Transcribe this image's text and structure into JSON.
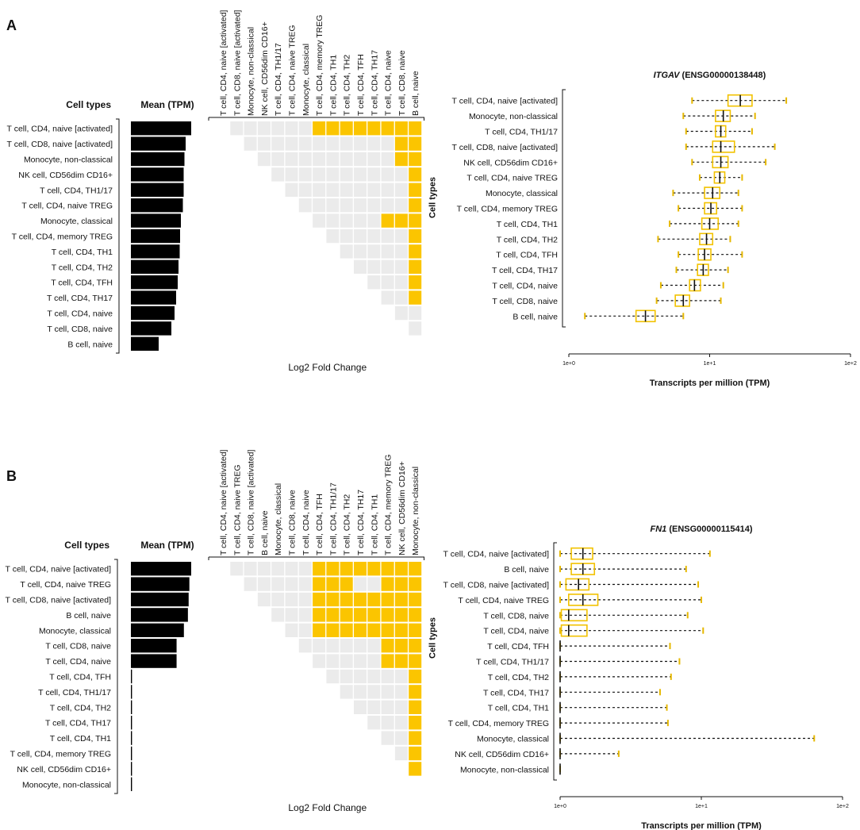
{
  "chart_data": [
    {
      "panel": "A",
      "left_header": "Cell types",
      "mean_header": "Mean (TPM)",
      "fc_xlabel": "Log2 Fold Change",
      "fc_side_label": "Cell types",
      "rows": [
        "T cell, CD4, naive [activated]",
        "T cell, CD8, naive [activated]",
        "Monocyte, non-classical",
        "NK cell, CD56dim CD16+",
        "T cell, CD4, TH1/17",
        "T cell, CD4, naive TREG",
        "Monocyte, classical",
        "T cell, CD4, memory TREG",
        "T cell, CD4, TH1",
        "T cell, CD4, TH2",
        "T cell, CD4, TFH",
        "T cell, CD4, TH17",
        "T cell, CD4, naive",
        "T cell, CD8, naive",
        "B cell, naive"
      ],
      "mean_tpm": [
        15.2,
        13.8,
        13.5,
        13.3,
        13.3,
        13.1,
        12.6,
        12.4,
        12.3,
        12.0,
        11.8,
        11.4,
        11.0,
        10.2,
        7.0
      ],
      "columns": [
        "T cell, CD4, naive [activated]",
        "T cell, CD8, naive [activated]",
        "Monocyte, non-classical",
        "NK cell, CD56dim CD16+",
        "T cell, CD4, TH1/17",
        "T cell, CD4, naive TREG",
        "Monocyte, classical",
        "T cell, CD4, memory TREG",
        "T cell, CD4, TH1",
        "T cell, CD4, TH2",
        "T cell, CD4, TFH",
        "T cell, CD4, TH17",
        "T cell, CD4, naive",
        "T cell, CD8, naive",
        "B cell, naive"
      ],
      "significant_pairs": [
        [
          0,
          7
        ],
        [
          0,
          8
        ],
        [
          0,
          9
        ],
        [
          0,
          10
        ],
        [
          0,
          11
        ],
        [
          0,
          12
        ],
        [
          0,
          13
        ],
        [
          0,
          14
        ],
        [
          1,
          13
        ],
        [
          1,
          14
        ],
        [
          2,
          13
        ],
        [
          2,
          14
        ],
        [
          3,
          14
        ],
        [
          4,
          14
        ],
        [
          5,
          14
        ],
        [
          6,
          12
        ],
        [
          6,
          13
        ],
        [
          6,
          14
        ],
        [
          7,
          14
        ],
        [
          8,
          14
        ],
        [
          9,
          14
        ],
        [
          10,
          14
        ],
        [
          11,
          14
        ]
      ],
      "box_title_gene": "ITGAV",
      "box_title_id": "(ENSG00000138448)",
      "box_type": "boxplot",
      "box_xlabel": "Transcripts per million (TPM)",
      "box_xticks": [
        "1e+0",
        "1e+1",
        "1e+2"
      ],
      "box_xlim": [
        1,
        100
      ],
      "box_rows": [
        "T cell, CD4, naive [activated]",
        "Monocyte, non-classical",
        "T cell, CD4, TH1/17",
        "T cell, CD8, naive [activated]",
        "NK cell, CD56dim CD16+",
        "T cell, CD4, naive TREG",
        "Monocyte, classical",
        "T cell, CD4, memory TREG",
        "T cell, CD4, TH1",
        "T cell, CD4, TH2",
        "T cell, CD4, TFH",
        "T cell, CD4, TH17",
        "T cell, CD4, naive",
        "T cell, CD8, naive",
        "B cell, naive"
      ],
      "box_stats": [
        {
          "min": 7.5,
          "q1": 13.5,
          "median": 16.5,
          "q3": 20,
          "max": 35
        },
        {
          "min": 6.5,
          "q1": 11,
          "median": 12.5,
          "q3": 14,
          "max": 21
        },
        {
          "min": 6.8,
          "q1": 11,
          "median": 12,
          "q3": 13,
          "max": 20
        },
        {
          "min": 6.8,
          "q1": 10.5,
          "median": 12,
          "q3": 15,
          "max": 29
        },
        {
          "min": 7.5,
          "q1": 10.5,
          "median": 12,
          "q3": 13.5,
          "max": 25
        },
        {
          "min": 8.5,
          "q1": 10.8,
          "median": 11.8,
          "q3": 12.8,
          "max": 17
        },
        {
          "min": 5.5,
          "q1": 9.2,
          "median": 10.5,
          "q3": 11.8,
          "max": 16
        },
        {
          "min": 6,
          "q1": 9.2,
          "median": 10.2,
          "q3": 11.2,
          "max": 17
        },
        {
          "min": 5.2,
          "q1": 8.8,
          "median": 10,
          "q3": 11.5,
          "max": 16
        },
        {
          "min": 4.3,
          "q1": 8.5,
          "median": 9.5,
          "q3": 10.5,
          "max": 14
        },
        {
          "min": 6,
          "q1": 8.3,
          "median": 9.2,
          "q3": 10.2,
          "max": 17
        },
        {
          "min": 5.8,
          "q1": 8.2,
          "median": 9,
          "q3": 9.8,
          "max": 13.5
        },
        {
          "min": 4.5,
          "q1": 7.2,
          "median": 7.8,
          "q3": 8.6,
          "max": 12.5
        },
        {
          "min": 4.2,
          "q1": 5.7,
          "median": 6.5,
          "q3": 7.2,
          "max": 12
        },
        {
          "min": 1.3,
          "q1": 3,
          "median": 3.5,
          "q3": 4.1,
          "max": 6.5
        }
      ]
    },
    {
      "panel": "B",
      "left_header": "Cell types",
      "mean_header": "Mean (TPM)",
      "fc_xlabel": "Log2 Fold Change",
      "fc_side_label": "Cell types",
      "rows": [
        "T cell, CD4, naive [activated]",
        "T cell, CD4, naive TREG",
        "T cell, CD8, naive [activated]",
        "B cell, naive",
        "Monocyte, classical",
        "T cell, CD8, naive",
        "T cell, CD4, naive",
        "T cell, CD4, TFH",
        "T cell, CD4, TH1/17",
        "T cell, CD4, TH2",
        "T cell, CD4, TH17",
        "T cell, CD4, TH1",
        "T cell, CD4, memory TREG",
        "NK cell, CD56dim CD16+",
        "Monocyte, non-classical"
      ],
      "mean_tpm": [
        1.65,
        1.6,
        1.58,
        1.56,
        1.45,
        1.25,
        1.25,
        0.03,
        0.03,
        0.03,
        0.03,
        0.03,
        0.03,
        0.03,
        0.03
      ],
      "columns": [
        "T cell, CD4, naive [activated]",
        "T cell, CD4, naive TREG",
        "T cell, CD8, naive [activated]",
        "B cell, naive",
        "Monocyte, classical",
        "T cell, CD8, naive",
        "T cell, CD4, naive",
        "T cell, CD4, TFH",
        "T cell, CD4, TH1/17",
        "T cell, CD4, TH2",
        "T cell, CD4, TH17",
        "T cell, CD4, TH1",
        "T cell, CD4, memory TREG",
        "NK cell, CD56dim CD16+",
        "Monocyte, non-classical"
      ],
      "significant_pairs": [
        [
          0,
          7
        ],
        [
          0,
          8
        ],
        [
          0,
          9
        ],
        [
          0,
          10
        ],
        [
          0,
          11
        ],
        [
          0,
          12
        ],
        [
          0,
          13
        ],
        [
          0,
          14
        ],
        [
          1,
          7
        ],
        [
          1,
          8
        ],
        [
          1,
          9
        ],
        [
          1,
          12
        ],
        [
          1,
          13
        ],
        [
          1,
          14
        ],
        [
          2,
          7
        ],
        [
          2,
          8
        ],
        [
          2,
          9
        ],
        [
          2,
          10
        ],
        [
          2,
          11
        ],
        [
          2,
          12
        ],
        [
          2,
          13
        ],
        [
          2,
          14
        ],
        [
          3,
          7
        ],
        [
          3,
          8
        ],
        [
          3,
          9
        ],
        [
          3,
          10
        ],
        [
          3,
          11
        ],
        [
          3,
          12
        ],
        [
          3,
          13
        ],
        [
          3,
          14
        ],
        [
          4,
          7
        ],
        [
          4,
          8
        ],
        [
          4,
          9
        ],
        [
          4,
          10
        ],
        [
          4,
          11
        ],
        [
          4,
          12
        ],
        [
          4,
          13
        ],
        [
          4,
          14
        ],
        [
          5,
          12
        ],
        [
          5,
          13
        ],
        [
          5,
          14
        ],
        [
          6,
          12
        ],
        [
          6,
          13
        ],
        [
          6,
          14
        ],
        [
          7,
          14
        ],
        [
          8,
          14
        ],
        [
          9,
          14
        ],
        [
          10,
          14
        ],
        [
          11,
          14
        ],
        [
          12,
          14
        ],
        [
          13,
          14
        ]
      ],
      "box_title_gene": "FN1",
      "box_title_id": "(ENSG00000115414)",
      "box_type": "boxplot",
      "box_xlabel": "Transcripts per million (TPM)",
      "box_xticks": [
        "1e+0",
        "1e+1",
        "1e+2"
      ],
      "box_xlim": [
        1,
        100
      ],
      "box_rows": [
        "T cell, CD4, naive [activated]",
        "B cell, naive",
        "T cell, CD8, naive [activated]",
        "T cell, CD4, naive TREG",
        "T cell, CD8, naive",
        "T cell, CD4, naive",
        "T cell, CD4, TFH",
        "T cell, CD4, TH1/17",
        "T cell, CD4, TH2",
        "T cell, CD4, TH17",
        "T cell, CD4, TH1",
        "T cell, CD4, memory TREG",
        "Monocyte, classical",
        "NK cell, CD56dim CD16+",
        "Monocyte, non-classical"
      ],
      "box_stats": [
        {
          "min": 1,
          "q1": 1.2,
          "median": 1.45,
          "q3": 1.7,
          "max": 11.5
        },
        {
          "min": 1,
          "q1": 1.2,
          "median": 1.45,
          "q3": 1.75,
          "max": 7.8
        },
        {
          "min": 1,
          "q1": 1.1,
          "median": 1.35,
          "q3": 1.6,
          "max": 9.5
        },
        {
          "min": 1,
          "q1": 1.15,
          "median": 1.45,
          "q3": 1.85,
          "max": 10
        },
        {
          "min": 1,
          "q1": 1.02,
          "median": 1.15,
          "q3": 1.55,
          "max": 8
        },
        {
          "min": 1,
          "q1": 1.02,
          "median": 1.15,
          "q3": 1.55,
          "max": 10.3
        },
        {
          "min": 1,
          "q1": 1,
          "median": 1,
          "q3": 1,
          "max": 6
        },
        {
          "min": 1,
          "q1": 1,
          "median": 1,
          "q3": 1,
          "max": 7
        },
        {
          "min": 1,
          "q1": 1,
          "median": 1,
          "q3": 1,
          "max": 6.1
        },
        {
          "min": 1,
          "q1": 1,
          "median": 1,
          "q3": 1,
          "max": 5.1
        },
        {
          "min": 1,
          "q1": 1,
          "median": 1,
          "q3": 1,
          "max": 5.7
        },
        {
          "min": 1,
          "q1": 1,
          "median": 1,
          "q3": 1,
          "max": 5.8
        },
        {
          "min": 1,
          "q1": 1,
          "median": 1,
          "q3": 1,
          "max": 63
        },
        {
          "min": 1,
          "q1": 1,
          "median": 1,
          "q3": 1,
          "max": 2.6
        },
        {
          "min": 1,
          "q1": 1,
          "median": 1,
          "q3": 1,
          "max": 1
        }
      ]
    }
  ],
  "colors": {
    "bar": "#000000",
    "heat_sig": "#fbc500",
    "heat_base": "#ebebeb",
    "box": "#f2c200",
    "whisker_end": "#e6b800"
  }
}
